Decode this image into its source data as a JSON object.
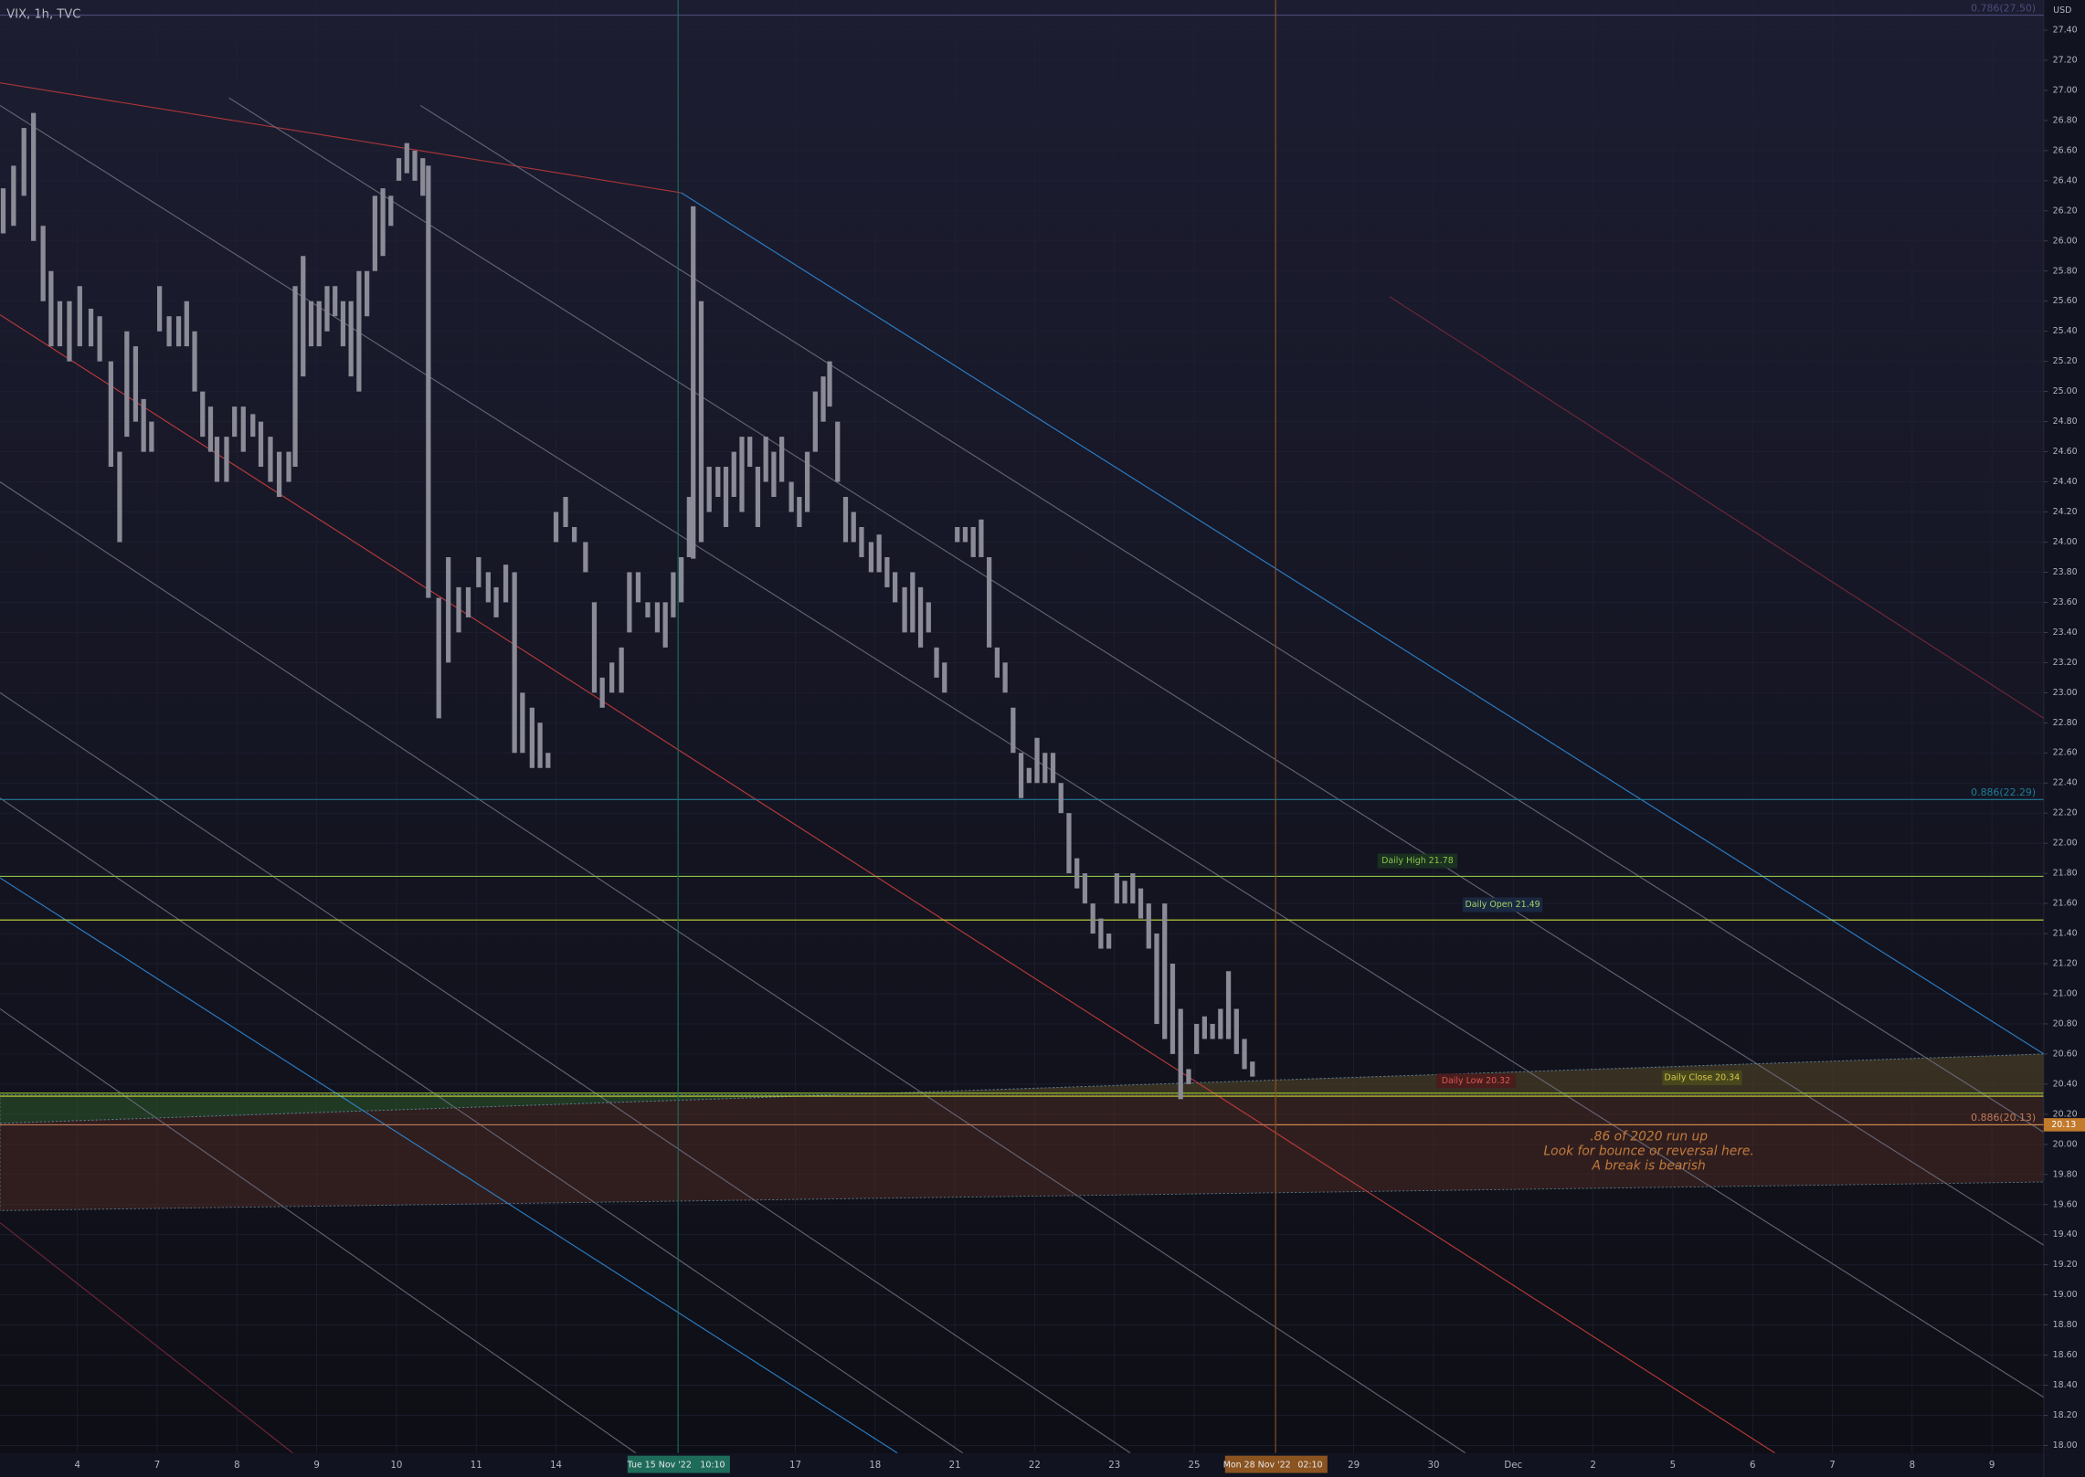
{
  "chart_data": {
    "type": "ohlc",
    "title": "VIX, 1h, TVC",
    "currency": "USD",
    "grid": true,
    "bar_color": "#8b8b97",
    "xlim": [
      -0.97,
      24.65
    ],
    "ylim": [
      17.95,
      27.6
    ],
    "xticks": [
      {
        "value": 0,
        "label": "4"
      },
      {
        "value": 1,
        "label": "7"
      },
      {
        "value": 2,
        "label": "8"
      },
      {
        "value": 3,
        "label": "9"
      },
      {
        "value": 4,
        "label": "10"
      },
      {
        "value": 5,
        "label": "11"
      },
      {
        "value": 6,
        "label": "14"
      },
      {
        "value": 9,
        "label": "17"
      },
      {
        "value": 10,
        "label": "18"
      },
      {
        "value": 11,
        "label": "21"
      },
      {
        "value": 12,
        "label": "22"
      },
      {
        "value": 13,
        "label": "23"
      },
      {
        "value": 14,
        "label": "25"
      },
      {
        "value": 16,
        "label": "29"
      },
      {
        "value": 17,
        "label": "30"
      },
      {
        "value": 18,
        "label": "Dec"
      },
      {
        "value": 19,
        "label": "2"
      },
      {
        "value": 20,
        "label": "5"
      },
      {
        "value": 21,
        "label": "6"
      },
      {
        "value": 22,
        "label": "7"
      },
      {
        "value": 23,
        "label": "8"
      },
      {
        "value": 24,
        "label": "9"
      }
    ],
    "yticks": [
      {
        "value": 18.0,
        "label": "18.00"
      },
      {
        "value": 18.2,
        "label": "18.20"
      },
      {
        "value": 18.4,
        "label": "18.40"
      },
      {
        "value": 18.6,
        "label": "18.60"
      },
      {
        "value": 18.8,
        "label": "18.80"
      },
      {
        "value": 19.0,
        "label": "19.00"
      },
      {
        "value": 19.2,
        "label": "19.20"
      },
      {
        "value": 19.4,
        "label": "19.40"
      },
      {
        "value": 19.6,
        "label": "19.60"
      },
      {
        "value": 19.8,
        "label": "19.80"
      },
      {
        "value": 20.0,
        "label": "20.00"
      },
      {
        "value": 20.2,
        "label": "20.20"
      },
      {
        "value": 20.4,
        "label": "20.40"
      },
      {
        "value": 20.6,
        "label": "20.60"
      },
      {
        "value": 20.8,
        "label": "20.80"
      },
      {
        "value": 21.0,
        "label": "21.00"
      },
      {
        "value": 21.2,
        "label": "21.20"
      },
      {
        "value": 21.4,
        "label": "21.40"
      },
      {
        "value": 21.6,
        "label": "21.60"
      },
      {
        "value": 21.8,
        "label": "21.80"
      },
      {
        "value": 22.0,
        "label": "22.00"
      },
      {
        "value": 22.2,
        "label": "22.20"
      },
      {
        "value": 22.4,
        "label": "22.40"
      },
      {
        "value": 22.6,
        "label": "22.60"
      },
      {
        "value": 22.8,
        "label": "22.80"
      },
      {
        "value": 23.0,
        "label": "23.00"
      },
      {
        "value": 23.2,
        "label": "23.20"
      },
      {
        "value": 23.4,
        "label": "23.40"
      },
      {
        "value": 23.6,
        "label": "23.60"
      },
      {
        "value": 23.8,
        "label": "23.80"
      },
      {
        "value": 24.0,
        "label": "24.00"
      },
      {
        "value": 24.2,
        "label": "24.20"
      },
      {
        "value": 24.4,
        "label": "24.40"
      },
      {
        "value": 24.6,
        "label": "24.60"
      },
      {
        "value": 24.8,
        "label": "24.80"
      },
      {
        "value": 25.0,
        "label": "25.00"
      },
      {
        "value": 25.2,
        "label": "25.20"
      },
      {
        "value": 25.4,
        "label": "25.40"
      },
      {
        "value": 25.6,
        "label": "25.60"
      },
      {
        "value": 25.8,
        "label": "25.80"
      },
      {
        "value": 26.0,
        "label": "26.00"
      },
      {
        "value": 26.2,
        "label": "26.20"
      },
      {
        "value": 26.4,
        "label": "26.40"
      },
      {
        "value": 26.6,
        "label": "26.60"
      },
      {
        "value": 26.8,
        "label": "26.80"
      },
      {
        "value": 27.0,
        "label": "27.00"
      },
      {
        "value": 27.2,
        "label": "27.20"
      },
      {
        "value": 27.4,
        "label": "27.40"
      }
    ],
    "bars": [
      [
        -0.93,
        26.05,
        26.35
      ],
      [
        -0.8,
        26.1,
        26.5
      ],
      [
        -0.67,
        26.3,
        26.75
      ],
      [
        -0.55,
        26.0,
        26.85
      ],
      [
        -0.43,
        25.6,
        26.1
      ],
      [
        -0.33,
        25.3,
        25.8
      ],
      [
        -0.22,
        25.3,
        25.6
      ],
      [
        -0.1,
        25.2,
        25.6
      ],
      [
        0.03,
        25.3,
        25.7
      ],
      [
        0.17,
        25.3,
        25.55
      ],
      [
        0.28,
        25.2,
        25.5
      ],
      [
        0.42,
        24.5,
        25.2
      ],
      [
        0.53,
        24.0,
        24.6
      ],
      [
        0.62,
        24.7,
        25.4
      ],
      [
        0.73,
        24.8,
        25.3
      ],
      [
        0.83,
        24.6,
        24.95
      ],
      [
        0.93,
        24.6,
        24.8
      ],
      [
        1.03,
        25.4,
        25.7
      ],
      [
        1.15,
        25.3,
        25.5
      ],
      [
        1.27,
        25.3,
        25.5
      ],
      [
        1.37,
        25.3,
        25.6
      ],
      [
        1.47,
        25.0,
        25.4
      ],
      [
        1.57,
        24.7,
        25.0
      ],
      [
        1.67,
        24.6,
        24.9
      ],
      [
        1.75,
        24.4,
        24.7
      ],
      [
        1.87,
        24.4,
        24.7
      ],
      [
        1.97,
        24.7,
        24.9
      ],
      [
        2.08,
        24.6,
        24.9
      ],
      [
        2.2,
        24.7,
        24.85
      ],
      [
        2.3,
        24.5,
        24.8
      ],
      [
        2.42,
        24.4,
        24.7
      ],
      [
        2.53,
        24.3,
        24.6
      ],
      [
        2.65,
        24.4,
        24.6
      ],
      [
        2.73,
        24.5,
        25.7
      ],
      [
        2.83,
        25.1,
        25.9
      ],
      [
        2.93,
        25.3,
        25.6
      ],
      [
        3.03,
        25.3,
        25.6
      ],
      [
        3.13,
        25.4,
        25.7
      ],
      [
        3.23,
        25.5,
        25.7
      ],
      [
        3.33,
        25.3,
        25.6
      ],
      [
        3.43,
        25.1,
        25.6
      ],
      [
        3.53,
        25.0,
        25.8
      ],
      [
        3.63,
        25.5,
        25.8
      ],
      [
        3.73,
        25.8,
        26.3
      ],
      [
        3.83,
        25.9,
        26.35
      ],
      [
        3.93,
        26.1,
        26.3
      ],
      [
        4.03,
        26.4,
        26.55
      ],
      [
        4.13,
        26.45,
        26.65
      ],
      [
        4.23,
        26.4,
        26.6
      ],
      [
        4.33,
        26.3,
        26.55
      ],
      [
        4.4,
        23.63,
        26.5
      ],
      [
        4.53,
        22.83,
        23.63
      ],
      [
        4.65,
        23.2,
        23.9
      ],
      [
        4.78,
        23.4,
        23.7
      ],
      [
        4.9,
        23.5,
        23.7
      ],
      [
        5.03,
        23.7,
        23.9
      ],
      [
        5.15,
        23.6,
        23.8
      ],
      [
        5.25,
        23.5,
        23.7
      ],
      [
        5.37,
        23.6,
        23.85
      ],
      [
        5.48,
        22.6,
        23.8
      ],
      [
        5.58,
        22.6,
        23.0
      ],
      [
        5.7,
        22.5,
        22.9
      ],
      [
        5.8,
        22.5,
        22.8
      ],
      [
        5.9,
        22.5,
        22.6
      ],
      [
        6.0,
        24.0,
        24.2
      ],
      [
        6.12,
        24.1,
        24.3
      ],
      [
        6.23,
        24.0,
        24.1
      ],
      [
        6.37,
        23.8,
        24.0
      ],
      [
        6.48,
        23.0,
        23.6
      ],
      [
        6.58,
        22.9,
        23.1
      ],
      [
        6.7,
        23.0,
        23.2
      ],
      [
        6.82,
        23.0,
        23.3
      ],
      [
        6.92,
        23.4,
        23.8
      ],
      [
        7.03,
        23.6,
        23.8
      ],
      [
        7.15,
        23.5,
        23.6
      ],
      [
        7.27,
        23.4,
        23.6
      ],
      [
        7.37,
        23.3,
        23.6
      ],
      [
        7.47,
        23.5,
        23.8
      ],
      [
        7.57,
        23.6,
        23.9
      ],
      [
        7.67,
        23.9,
        24.3
      ],
      [
        7.72,
        23.89,
        26.23
      ],
      [
        7.82,
        24.0,
        25.6
      ],
      [
        7.92,
        24.2,
        24.5
      ],
      [
        8.03,
        24.3,
        24.5
      ],
      [
        8.13,
        24.1,
        24.5
      ],
      [
        8.23,
        24.3,
        24.6
      ],
      [
        8.33,
        24.2,
        24.7
      ],
      [
        8.43,
        24.5,
        24.7
      ],
      [
        8.53,
        24.1,
        24.5
      ],
      [
        8.63,
        24.4,
        24.7
      ],
      [
        8.73,
        24.3,
        24.6
      ],
      [
        8.83,
        24.4,
        24.7
      ],
      [
        8.95,
        24.2,
        24.4
      ],
      [
        9.05,
        24.1,
        24.3
      ],
      [
        9.15,
        24.2,
        24.6
      ],
      [
        9.25,
        24.6,
        25.0
      ],
      [
        9.35,
        24.8,
        25.1
      ],
      [
        9.43,
        24.9,
        25.2
      ],
      [
        9.53,
        24.4,
        24.8
      ],
      [
        9.63,
        24.0,
        24.3
      ],
      [
        9.73,
        24.0,
        24.2
      ],
      [
        9.83,
        23.9,
        24.1
      ],
      [
        9.95,
        23.8,
        24.0
      ],
      [
        10.05,
        23.8,
        24.05
      ],
      [
        10.15,
        23.7,
        23.9
      ],
      [
        10.25,
        23.6,
        23.8
      ],
      [
        10.37,
        23.4,
        23.7
      ],
      [
        10.47,
        23.4,
        23.8
      ],
      [
        10.57,
        23.3,
        23.7
      ],
      [
        10.67,
        23.4,
        23.6
      ],
      [
        10.77,
        23.1,
        23.3
      ],
      [
        10.87,
        23.0,
        23.2
      ],
      [
        11.03,
        24.0,
        24.1
      ],
      [
        11.13,
        24.0,
        24.1
      ],
      [
        11.23,
        23.9,
        24.1
      ],
      [
        11.33,
        23.9,
        24.15
      ],
      [
        11.43,
        23.3,
        23.9
      ],
      [
        11.53,
        23.1,
        23.3
      ],
      [
        11.63,
        23.0,
        23.2
      ],
      [
        11.73,
        22.6,
        22.9
      ],
      [
        11.83,
        22.3,
        22.6
      ],
      [
        11.93,
        22.4,
        22.5
      ],
      [
        12.03,
        22.4,
        22.7
      ],
      [
        12.13,
        22.4,
        22.6
      ],
      [
        12.23,
        22.4,
        22.6
      ],
      [
        12.33,
        22.2,
        22.4
      ],
      [
        12.43,
        21.8,
        22.2
      ],
      [
        12.53,
        21.7,
        21.9
      ],
      [
        12.63,
        21.6,
        21.8
      ],
      [
        12.73,
        21.4,
        21.6
      ],
      [
        12.83,
        21.3,
        21.5
      ],
      [
        12.93,
        21.3,
        21.4
      ],
      [
        13.03,
        21.6,
        21.8
      ],
      [
        13.13,
        21.6,
        21.75
      ],
      [
        13.23,
        21.6,
        21.8
      ],
      [
        13.33,
        21.5,
        21.7
      ],
      [
        13.43,
        21.3,
        21.6
      ],
      [
        13.53,
        20.8,
        21.4
      ],
      [
        13.63,
        20.7,
        21.6
      ],
      [
        13.73,
        20.6,
        21.2
      ],
      [
        13.83,
        20.3,
        20.9
      ],
      [
        13.93,
        20.4,
        20.5
      ],
      [
        14.03,
        20.6,
        20.8
      ],
      [
        14.13,
        20.7,
        20.85
      ],
      [
        14.23,
        20.7,
        20.8
      ],
      [
        14.33,
        20.7,
        20.9
      ],
      [
        14.43,
        20.7,
        21.15
      ],
      [
        14.53,
        20.6,
        20.9
      ],
      [
        14.63,
        20.5,
        20.7
      ],
      [
        14.73,
        20.45,
        20.55
      ]
    ],
    "trendlines": [
      {
        "color": "#c0393b",
        "points": [
          [
            -0.97,
            27.05
          ],
          [
            7.57,
            26.32
          ]
        ]
      },
      {
        "color": "#2f8fe0",
        "points": [
          [
            7.57,
            26.32
          ],
          [
            24.65,
            20.6
          ]
        ]
      },
      {
        "color": "#d2403e",
        "points": [
          [
            -0.97,
            25.51
          ],
          [
            21.28,
            17.95
          ]
        ]
      },
      {
        "color": "#2f8fe0",
        "points": [
          [
            -0.97,
            21.77
          ],
          [
            10.28,
            17.95
          ]
        ]
      },
      {
        "color": "#7a2a3c",
        "points": [
          [
            16.45,
            25.63
          ],
          [
            24.65,
            22.83
          ]
        ]
      },
      {
        "color": "#7a2a3c",
        "points": [
          [
            -0.97,
            19.48
          ],
          [
            2.7,
            17.95
          ]
        ]
      },
      {
        "color": "#6f7080",
        "points": [
          [
            -0.97,
            26.9
          ],
          [
            24.65,
            18.32
          ]
        ]
      },
      {
        "color": "#6f7080",
        "points": [
          [
            1.9,
            26.95
          ],
          [
            24.65,
            19.33
          ]
        ]
      },
      {
        "color": "#6f7080",
        "points": [
          [
            4.3,
            26.9
          ],
          [
            24.65,
            20.08
          ]
        ]
      },
      {
        "color": "#6f7080",
        "points": [
          [
            -0.97,
            24.4
          ],
          [
            17.4,
            17.95
          ]
        ]
      },
      {
        "color": "#6f7080",
        "points": [
          [
            -0.97,
            23.0
          ],
          [
            13.2,
            17.95
          ]
        ]
      },
      {
        "color": "#6f7080",
        "points": [
          [
            -0.97,
            22.3
          ],
          [
            11.1,
            17.95
          ]
        ]
      },
      {
        "color": "#6f7080",
        "points": [
          [
            -0.97,
            20.9
          ],
          [
            7.0,
            17.95
          ]
        ]
      }
    ],
    "zones": [
      {
        "color": "#2e5a2a",
        "points": [
          [
            -0.97,
            20.14
          ],
          [
            24.65,
            20.6
          ],
          [
            24.65,
            20.33
          ],
          [
            -0.97,
            20.33
          ]
        ]
      },
      {
        "color": "#4a2a22",
        "points": [
          [
            -0.97,
            20.14
          ],
          [
            24.65,
            20.6
          ],
          [
            24.65,
            19.75
          ],
          [
            -0.97,
            19.56
          ]
        ]
      }
    ],
    "levels": [
      {
        "value": 27.5,
        "label": "0.786(27.50)",
        "color": "#4c4c7c"
      },
      {
        "value": 22.29,
        "label": "0.886(22.29)",
        "color": "#1f7d99"
      },
      {
        "value": 21.78,
        "label": "Daily High 21.78",
        "color": "#8bc34a"
      },
      {
        "value": 21.49,
        "label": "Daily Open 21.49",
        "color": "#cddc39"
      },
      {
        "value": 20.32,
        "label": "Daily Low 20.32",
        "color": "#cddc39"
      },
      {
        "value": 20.34,
        "label": "Daily Close 20.34",
        "color": "#9acd32"
      },
      {
        "value": 20.13,
        "label": "0.886(20.13)",
        "color": "#c07a58"
      }
    ],
    "last_price": 20.13,
    "crosshairs": [
      {
        "x": 7.53,
        "label": "Tue 15 Nov '22",
        "time": "10:10",
        "color": "#1e6b5a"
      },
      {
        "x": 15.02,
        "label": "Mon 28 Nov '22",
        "time": "02:10",
        "color": "#8a5320"
      }
    ],
    "annotation": [
      ".86 of 2020 run up",
      "Look for bounce or reversal here.",
      "A break is bearish"
    ]
  }
}
